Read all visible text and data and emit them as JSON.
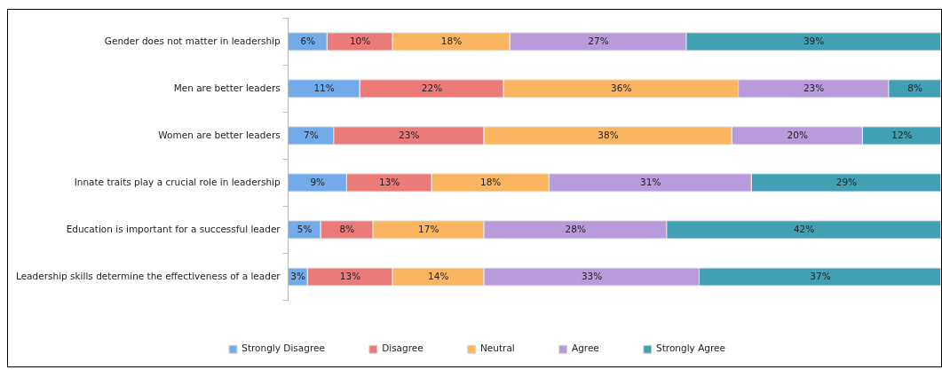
{
  "chart_data": {
    "type": "bar",
    "orientation": "horizontal",
    "stacked": true,
    "legend": "bottom",
    "tick_labels": "y",
    "xlim": [
      0,
      100
    ],
    "categories": [
      "Gender does not matter in leadership",
      "Men are better leaders",
      "Women are better leaders",
      "Innate traits play a crucial role in leadership",
      "Education is important for a successful leader",
      "Leadership skills determine the effectiveness of a leader"
    ],
    "series": [
      {
        "name": "Strongly Disagree",
        "color": "#72aaea",
        "values": [
          6,
          11,
          7,
          9,
          5,
          3
        ],
        "value_labels": [
          "6%",
          "11%",
          "7%",
          "9%",
          "5%",
          "3%"
        ]
      },
      {
        "name": "Disagree",
        "color": "#ea7b78",
        "values": [
          10,
          22,
          23,
          13,
          8,
          13
        ],
        "value_labels": [
          "10%",
          "22%",
          "23%",
          "13%",
          "8%",
          "13%"
        ]
      },
      {
        "name": "Neutral",
        "color": "#fbb560",
        "values": [
          18,
          36,
          38,
          18,
          17,
          14
        ],
        "value_labels": [
          "18%",
          "36%",
          "38%",
          "18%",
          "17%",
          "14%"
        ]
      },
      {
        "name": "Agree",
        "color": "#b79bdb",
        "values": [
          27,
          23,
          20,
          31,
          28,
          33
        ],
        "value_labels": [
          "27%",
          "23%",
          "20%",
          "31%",
          "28%",
          "33%"
        ]
      },
      {
        "name": "Strongly Agree",
        "color": "#42a0b5",
        "values": [
          39,
          8,
          12,
          29,
          42,
          37
        ],
        "value_labels": [
          "39%",
          "8%",
          "12%",
          "29%",
          "42%",
          "37%"
        ]
      }
    ]
  }
}
